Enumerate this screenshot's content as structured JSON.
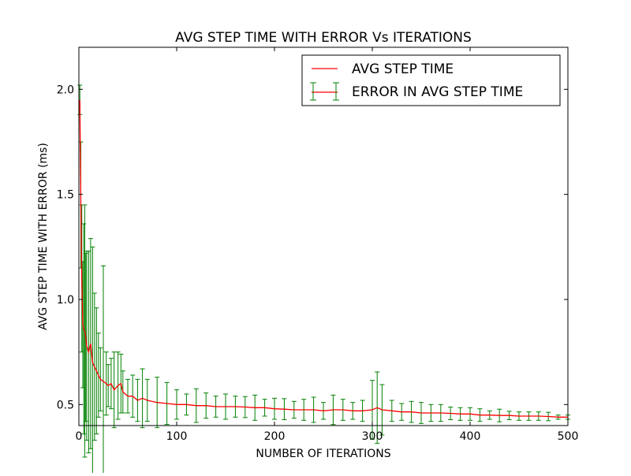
{
  "chart_data": {
    "type": "line",
    "title": "AVG STEP TIME WITH ERROR Vs ITERATIONS",
    "xlabel": "NUMBER OF ITERATIONS",
    "ylabel": "AVG STEP TIME WITH ERROR (ms)",
    "xlim": [
      0,
      500
    ],
    "ylim": [
      0.4,
      2.2
    ],
    "xticks": [
      0,
      100,
      200,
      300,
      400,
      500
    ],
    "xtick_labels": [
      "0",
      "100",
      "200",
      "300",
      "400",
      "500"
    ],
    "yticks": [
      0.5,
      1.0,
      1.5,
      2.0
    ],
    "ytick_labels": [
      "0.5",
      "1.0",
      "1.5",
      "2.0"
    ],
    "grid": false,
    "legend_position": "top-right",
    "series": [
      {
        "name": "AVG STEP TIME",
        "color": "#ff0000",
        "style": "line",
        "x": [
          1,
          2,
          3,
          4,
          5,
          6,
          7,
          8,
          10,
          12,
          14,
          16,
          18,
          20,
          22,
          25,
          28,
          30,
          33,
          36,
          40,
          43,
          45,
          50,
          55,
          60,
          65,
          70,
          80,
          90,
          100,
          110,
          120,
          130,
          140,
          150,
          160,
          170,
          180,
          190,
          200,
          210,
          220,
          230,
          240,
          250,
          260,
          270,
          280,
          290,
          300,
          305,
          310,
          320,
          330,
          340,
          350,
          360,
          370,
          380,
          390,
          400,
          410,
          420,
          430,
          440,
          450,
          460,
          470,
          480,
          490,
          500
        ],
        "y": [
          1.95,
          1.45,
          1.1,
          0.88,
          0.86,
          0.85,
          0.82,
          0.78,
          0.75,
          0.79,
          0.7,
          0.68,
          0.66,
          0.64,
          0.62,
          0.61,
          0.6,
          0.59,
          0.6,
          0.57,
          0.59,
          0.6,
          0.56,
          0.54,
          0.54,
          0.52,
          0.53,
          0.52,
          0.51,
          0.505,
          0.5,
          0.5,
          0.495,
          0.495,
          0.49,
          0.49,
          0.49,
          0.488,
          0.485,
          0.485,
          0.48,
          0.478,
          0.475,
          0.475,
          0.475,
          0.47,
          0.475,
          0.475,
          0.47,
          0.47,
          0.475,
          0.485,
          0.475,
          0.47,
          0.465,
          0.465,
          0.46,
          0.46,
          0.46,
          0.458,
          0.455,
          0.455,
          0.45,
          0.45,
          0.448,
          0.448,
          0.445,
          0.445,
          0.445,
          0.443,
          0.44,
          0.44
        ]
      },
      {
        "name": "ERROR IN AVG STEP TIME",
        "color": "#008000",
        "style": "errorbar",
        "x": [
          1,
          2,
          3,
          4,
          5,
          6,
          7,
          8,
          10,
          12,
          14,
          16,
          18,
          20,
          22,
          25,
          28,
          30,
          33,
          36,
          40,
          43,
          45,
          50,
          55,
          60,
          65,
          70,
          80,
          90,
          100,
          110,
          120,
          130,
          140,
          150,
          160,
          170,
          180,
          190,
          200,
          210,
          220,
          230,
          240,
          250,
          260,
          270,
          280,
          290,
          300,
          305,
          310,
          320,
          330,
          340,
          350,
          360,
          370,
          380,
          390,
          400,
          410,
          420,
          430,
          440,
          450,
          460,
          470,
          480,
          490,
          500
        ],
        "err": [
          0.07,
          0.3,
          0.35,
          0.3,
          0.5,
          0.6,
          0.4,
          0.45,
          0.48,
          0.5,
          0.55,
          0.35,
          0.3,
          0.2,
          0.15,
          0.55,
          0.15,
          0.1,
          0.12,
          0.18,
          0.16,
          0.14,
          0.1,
          0.08,
          0.1,
          0.1,
          0.14,
          0.1,
          0.12,
          0.1,
          0.07,
          0.05,
          0.08,
          0.06,
          0.05,
          0.06,
          0.05,
          0.05,
          0.06,
          0.04,
          0.05,
          0.05,
          0.04,
          0.05,
          0.06,
          0.04,
          0.07,
          0.05,
          0.04,
          0.05,
          0.14,
          0.17,
          0.12,
          0.05,
          0.04,
          0.05,
          0.05,
          0.04,
          0.04,
          0.03,
          0.03,
          0.03,
          0.03,
          0.02,
          0.03,
          0.02,
          0.02,
          0.02,
          0.02,
          0.02,
          0.01,
          0.01
        ]
      }
    ]
  }
}
